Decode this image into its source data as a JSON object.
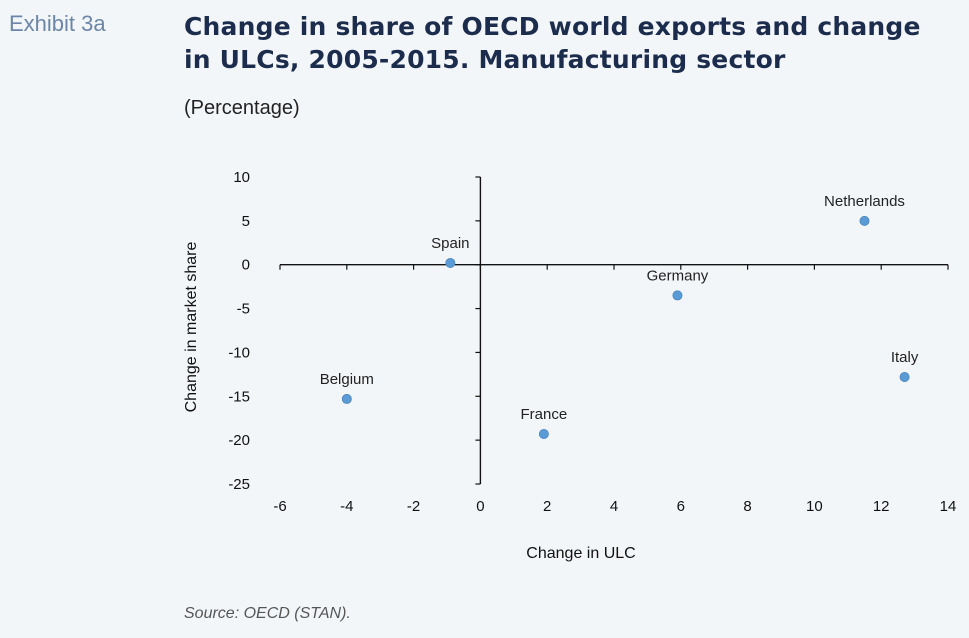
{
  "exhibit_label": "Exhibit 3a",
  "title": "Change in share of OECD world exports and change in ULCs, 2005-2015. Manufacturing sector",
  "subtitle": "(Percentage)",
  "source": "Source: OECD (STAN).",
  "chart_data": {
    "type": "scatter",
    "title": "Change in share of OECD world exports and change in ULCs, 2005-2015. Manufacturing sector",
    "subtitle": "(Percentage)",
    "xlabel": "Change in ULC",
    "ylabel": "Change in market share",
    "xlim": [
      -6,
      14
    ],
    "ylim": [
      -25,
      10
    ],
    "x_ticks": [
      -6,
      -4,
      -2,
      0,
      2,
      4,
      6,
      8,
      10,
      12,
      14
    ],
    "y_ticks": [
      10,
      5,
      0,
      -5,
      -10,
      -15,
      -20,
      -25
    ],
    "grid": false,
    "marker_color": "#5b9bd5",
    "points": [
      {
        "label": "Netherlands",
        "x": 11.5,
        "y": 5.0
      },
      {
        "label": "Spain",
        "x": -0.9,
        "y": 0.2
      },
      {
        "label": "Germany",
        "x": 5.9,
        "y": -3.5
      },
      {
        "label": "Italy",
        "x": 12.7,
        "y": -12.8
      },
      {
        "label": "Belgium",
        "x": -4.0,
        "y": -15.3
      },
      {
        "label": "France",
        "x": 1.9,
        "y": -19.3
      }
    ]
  }
}
